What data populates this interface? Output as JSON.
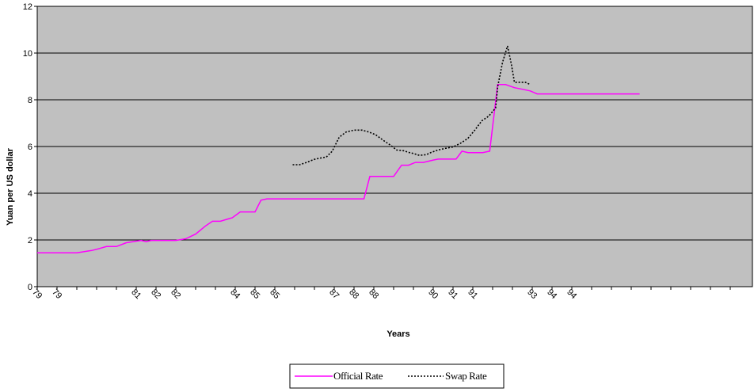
{
  "chart_data": {
    "type": "line",
    "title": "",
    "xlabel": "Years",
    "ylabel": "Yuan per US dollar",
    "ylim": [
      0,
      12
    ],
    "yticks": [
      0,
      2,
      4,
      6,
      8,
      10,
      12
    ],
    "x_tick_labels": [
      "79",
      "79",
      "",
      "",
      "",
      "81",
      "82",
      "82",
      "",
      "",
      "84",
      "85",
      "85",
      "",
      "",
      "87",
      "88",
      "88",
      "",
      "",
      "90",
      "91",
      "91",
      "",
      "",
      "93",
      "94",
      "94",
      "",
      "",
      "",
      "",
      "",
      "",
      "",
      ""
    ],
    "x_count": 36,
    "grid": "horizontal",
    "plot_background": "#c0c0c0",
    "legend_position": "bottom-center",
    "series": [
      {
        "name": "Official Rate",
        "color": "#ff00ff",
        "style": "solid",
        "points": [
          [
            0,
            1.45
          ],
          [
            1,
            1.45
          ],
          [
            2,
            1.45
          ],
          [
            3,
            1.45
          ],
          [
            4,
            1.45
          ],
          [
            5,
            1.52
          ],
          [
            5.5,
            1.55
          ],
          [
            6,
            1.6
          ],
          [
            7,
            1.72
          ],
          [
            8,
            1.72
          ],
          [
            9,
            1.88
          ],
          [
            10,
            1.95
          ],
          [
            10.5,
            1.98
          ],
          [
            11,
            1.93
          ],
          [
            11.5,
            1.98
          ],
          [
            12,
            1.98
          ],
          [
            13,
            1.98
          ],
          [
            14,
            1.98
          ],
          [
            15,
            2.05
          ],
          [
            16,
            2.25
          ],
          [
            17,
            2.6
          ],
          [
            17.7,
            2.8
          ],
          [
            18.5,
            2.8
          ],
          [
            19.3,
            2.9
          ],
          [
            19.7,
            2.95
          ],
          [
            20.5,
            3.2
          ],
          [
            21.5,
            3.2
          ],
          [
            22,
            3.2
          ],
          [
            22.6,
            3.7
          ],
          [
            23.2,
            3.76
          ],
          [
            24,
            3.76
          ],
          [
            26,
            3.76
          ],
          [
            28,
            3.76
          ],
          [
            30,
            3.76
          ],
          [
            32,
            3.76
          ],
          [
            33,
            3.76
          ],
          [
            33.6,
            4.72
          ],
          [
            34.5,
            4.72
          ],
          [
            35.5,
            4.72
          ],
          [
            36,
            4.72
          ],
          [
            36.8,
            5.2
          ],
          [
            37.5,
            5.2
          ],
          [
            38.2,
            5.32
          ],
          [
            39,
            5.32
          ],
          [
            40,
            5.42
          ],
          [
            40.5,
            5.46
          ],
          [
            41,
            5.46
          ],
          [
            42,
            5.46
          ],
          [
            42.3,
            5.46
          ],
          [
            42.9,
            5.8
          ],
          [
            43.5,
            5.74
          ],
          [
            44,
            5.74
          ],
          [
            45,
            5.74
          ],
          [
            45.7,
            5.8
          ],
          [
            46.5,
            8.65
          ],
          [
            47.3,
            8.65
          ],
          [
            48.2,
            8.52
          ],
          [
            49,
            8.45
          ],
          [
            49.8,
            8.38
          ],
          [
            50.5,
            8.25
          ],
          [
            51.5,
            8.25
          ],
          [
            53,
            8.25
          ],
          [
            56,
            8.25
          ],
          [
            60.85,
            8.25
          ]
        ]
      },
      {
        "name": "Swap Rate",
        "color": "#000000",
        "style": "dotted",
        "points": [
          [
            25.8,
            5.22
          ],
          [
            26.5,
            5.22
          ],
          [
            27.2,
            5.32
          ],
          [
            28,
            5.45
          ],
          [
            28.5,
            5.5
          ],
          [
            29.2,
            5.55
          ],
          [
            29.8,
            5.8
          ],
          [
            30.5,
            6.4
          ],
          [
            31.2,
            6.62
          ],
          [
            32,
            6.7
          ],
          [
            32.8,
            6.7
          ],
          [
            33.5,
            6.62
          ],
          [
            34.2,
            6.5
          ],
          [
            35,
            6.25
          ],
          [
            35.7,
            6.05
          ],
          [
            36.3,
            5.85
          ],
          [
            37,
            5.82
          ],
          [
            37.5,
            5.75
          ],
          [
            38,
            5.7
          ],
          [
            38.6,
            5.62
          ],
          [
            39.3,
            5.65
          ],
          [
            39.8,
            5.75
          ],
          [
            40.5,
            5.85
          ],
          [
            41.2,
            5.92
          ],
          [
            42,
            5.98
          ],
          [
            42.8,
            6.15
          ],
          [
            43.5,
            6.35
          ],
          [
            44.2,
            6.7
          ],
          [
            44.9,
            7.1
          ],
          [
            45.6,
            7.3
          ],
          [
            46.3,
            7.65
          ],
          [
            46.5,
            8.55
          ],
          [
            47,
            9.6
          ],
          [
            47.5,
            10.3
          ],
          [
            47.9,
            9.5
          ],
          [
            48.2,
            8.75
          ],
          [
            48.8,
            8.75
          ],
          [
            49.3,
            8.75
          ],
          [
            49.8,
            8.65
          ]
        ]
      }
    ]
  }
}
